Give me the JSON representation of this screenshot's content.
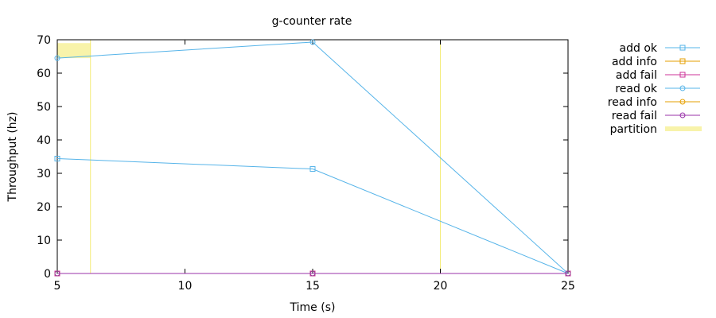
{
  "chart_data": {
    "type": "line",
    "title": "g-counter rate",
    "xlabel": "Time (s)",
    "ylabel": "Throughput (hz)",
    "xlim": [
      5,
      25
    ],
    "ylim": [
      0,
      70
    ],
    "xticks": [
      5,
      10,
      15,
      20,
      25
    ],
    "yticks": [
      0,
      10,
      20,
      30,
      40,
      50,
      60,
      70
    ],
    "grid": false,
    "legend_position": "outside-right",
    "series": [
      {
        "name": "add ok",
        "color": "#56b4e9",
        "marker": "square",
        "x": [
          5,
          15,
          25
        ],
        "y": [
          34.4,
          31.3,
          0
        ]
      },
      {
        "name": "add info",
        "color": "#e69f00",
        "marker": "square",
        "x": [
          5,
          15,
          25
        ],
        "y": [
          0,
          0,
          0
        ]
      },
      {
        "name": "add fail",
        "color": "#cc3399",
        "marker": "square",
        "x": [
          5,
          15,
          25
        ],
        "y": [
          0,
          0,
          0
        ]
      },
      {
        "name": "read ok",
        "color": "#56b4e9",
        "marker": "circle",
        "x": [
          5,
          15,
          25
        ],
        "y": [
          64.5,
          69.3,
          0
        ]
      },
      {
        "name": "read info",
        "color": "#e69f00",
        "marker": "circle",
        "x": [
          5,
          15,
          25
        ],
        "y": [
          0,
          0,
          0
        ]
      },
      {
        "name": "read fail",
        "color": "#9933aa",
        "marker": "circle",
        "x": [
          5,
          15,
          25
        ],
        "y": [
          0,
          0,
          0
        ]
      }
    ],
    "partition": {
      "name": "partition",
      "color": "#f0e442",
      "band": {
        "x_start": 5,
        "x_end": 6.3,
        "y_start": 64.5,
        "y_end": 69
      },
      "lines": [
        6.3,
        20
      ]
    }
  }
}
